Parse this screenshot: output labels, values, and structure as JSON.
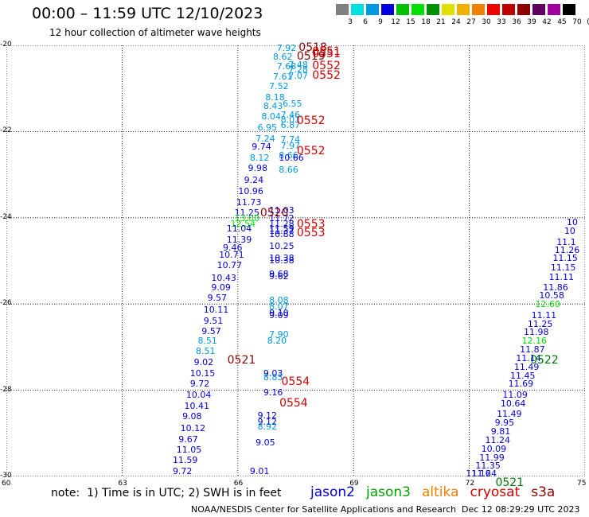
{
  "title": "00:00 – 11:59 UTC 12/10/2023",
  "subtitle": "12 hour collection of altimeter wave heights",
  "colorbar": {
    "unit": "(ft)",
    "labels": [
      "3",
      "6",
      "9",
      "12",
      "15",
      "18",
      "21",
      "24",
      "27",
      "30",
      "33",
      "36",
      "39",
      "42",
      "45",
      "70"
    ],
    "colors": [
      "#808080",
      "#00e0e0",
      "#0098e0",
      "#0000e0",
      "#00c000",
      "#00e000",
      "#009000",
      "#e0e000",
      "#f0b000",
      "#f08000",
      "#f00000",
      "#c00000",
      "#900000",
      "#600060",
      "#a000a0",
      "#000000"
    ]
  },
  "axes": {
    "lat_labels": [
      "-20",
      "-22",
      "-24",
      "-26",
      "-28",
      "-30"
    ],
    "lon_labels": [
      "60",
      "63",
      "66",
      "69",
      "72",
      "75"
    ]
  },
  "chart_data": {
    "type": "scatter",
    "xlim": [
      60,
      75
    ],
    "ylim": [
      -30,
      -20
    ],
    "points": [
      {
        "t": "7.92",
        "lon": 67.3,
        "lat": -20.05,
        "c": "#0098e0"
      },
      {
        "t": "8.62",
        "lon": 67.2,
        "lat": -20.25,
        "c": "#0098e0"
      },
      {
        "t": "7.68",
        "lon": 67.3,
        "lat": -20.48,
        "c": "#0098e0"
      },
      {
        "t": "7.48",
        "lon": 67.6,
        "lat": -20.45,
        "c": "#0098e0"
      },
      {
        "t": "7.28",
        "lon": 67.6,
        "lat": -20.55,
        "c": "#0098e0"
      },
      {
        "t": "7.61",
        "lon": 67.2,
        "lat": -20.72,
        "c": "#0098e0"
      },
      {
        "t": "7.07",
        "lon": 67.6,
        "lat": -20.7,
        "c": "#0098e0"
      },
      {
        "t": "7.52",
        "lon": 67.1,
        "lat": -20.95,
        "c": "#0098e0"
      },
      {
        "t": "8.18",
        "lon": 67.0,
        "lat": -21.2,
        "c": "#0098e0"
      },
      {
        "t": "8.43",
        "lon": 66.95,
        "lat": -21.4,
        "c": "#0098e0"
      },
      {
        "t": "6.55",
        "lon": 67.45,
        "lat": -21.35,
        "c": "#0098e0"
      },
      {
        "t": "8.04",
        "lon": 66.9,
        "lat": -21.65,
        "c": "#0098e0"
      },
      {
        "t": "7.46",
        "lon": 67.4,
        "lat": -21.6,
        "c": "#0098e0"
      },
      {
        "t": "8.01",
        "lon": 67.4,
        "lat": -21.72,
        "c": "#0098e0"
      },
      {
        "t": "6.95",
        "lon": 66.8,
        "lat": -21.9,
        "c": "#0098e0"
      },
      {
        "t": "6.87",
        "lon": 67.4,
        "lat": -21.85,
        "c": "#0098e0"
      },
      {
        "t": "7.24",
        "lon": 66.75,
        "lat": -22.15,
        "c": "#0098e0"
      },
      {
        "t": "7.74",
        "lon": 67.4,
        "lat": -22.17,
        "c": "#0098e0"
      },
      {
        "t": "9.74",
        "lon": 66.65,
        "lat": -22.35,
        "c": "#0000e0"
      },
      {
        "t": "7.97",
        "lon": 67.4,
        "lat": -22.33,
        "c": "#0098e0"
      },
      {
        "t": "8.12",
        "lon": 66.6,
        "lat": -22.6,
        "c": "#0098e0"
      },
      {
        "t": "8.66",
        "lon": 67.35,
        "lat": -22.55,
        "c": "#0098e0"
      },
      {
        "t": "10.66",
        "lon": 67.35,
        "lat": -22.6,
        "c": "#0000e0"
      },
      {
        "t": "9.98",
        "lon": 66.55,
        "lat": -22.85,
        "c": "#0000e0"
      },
      {
        "t": "8.66",
        "lon": 67.35,
        "lat": -22.88,
        "c": "#0098e0"
      },
      {
        "t": "9.24",
        "lon": 66.45,
        "lat": -23.12,
        "c": "#0000e0"
      },
      {
        "t": "10.96",
        "lon": 66.3,
        "lat": -23.38,
        "c": "#0000e0"
      },
      {
        "t": "11.73",
        "lon": 66.25,
        "lat": -23.63,
        "c": "#0000e0"
      },
      {
        "t": "11.25",
        "lon": 66.2,
        "lat": -23.88,
        "c": "#0000e0"
      },
      {
        "t": "11.03",
        "lon": 67.1,
        "lat": -23.82,
        "c": "#0000e0"
      },
      {
        "t": "11.72",
        "lon": 67.1,
        "lat": -24.0,
        "c": "#0000e0"
      },
      {
        "t": "13.00",
        "lon": 66.2,
        "lat": -24.0,
        "c": "#00e000"
      },
      {
        "t": "11.28",
        "lon": 67.1,
        "lat": -24.13,
        "c": "#0000e0"
      },
      {
        "t": "12.54",
        "lon": 66.1,
        "lat": -24.13,
        "c": "#00e000"
      },
      {
        "t": "11.59",
        "lon": 67.1,
        "lat": -24.25,
        "c": "#0000e0"
      },
      {
        "t": "11.37",
        "lon": 67.1,
        "lat": -24.3,
        "c": "#0000e0"
      },
      {
        "t": "11.04",
        "lon": 66.0,
        "lat": -24.25,
        "c": "#0000e0"
      },
      {
        "t": "10.88",
        "lon": 67.1,
        "lat": -24.38,
        "c": "#0000e0"
      },
      {
        "t": "11.39",
        "lon": 66.0,
        "lat": -24.5,
        "c": "#0000e0"
      },
      {
        "t": "10.25",
        "lon": 67.1,
        "lat": -24.65,
        "c": "#0000e0"
      },
      {
        "t": "9.46",
        "lon": 65.9,
        "lat": -24.68,
        "c": "#0000e0"
      },
      {
        "t": "10.71",
        "lon": 65.8,
        "lat": -24.85,
        "c": "#0000e0"
      },
      {
        "t": "10.38",
        "lon": 67.1,
        "lat": -24.92,
        "c": "#0000e0"
      },
      {
        "t": "10.38",
        "lon": 67.1,
        "lat": -24.98,
        "c": "#0000e0"
      },
      {
        "t": "10.77",
        "lon": 65.75,
        "lat": -25.1,
        "c": "#0000e0"
      },
      {
        "t": "9.68",
        "lon": 67.1,
        "lat": -25.3,
        "c": "#0000e0"
      },
      {
        "t": "9.62",
        "lon": 67.1,
        "lat": -25.35,
        "c": "#0000e0"
      },
      {
        "t": "10.43",
        "lon": 65.6,
        "lat": -25.38,
        "c": "#0000e0"
      },
      {
        "t": "9.09",
        "lon": 65.6,
        "lat": -25.6,
        "c": "#0000e0"
      },
      {
        "t": "9.57",
        "lon": 65.5,
        "lat": -25.85,
        "c": "#0000e0"
      },
      {
        "t": "8.08",
        "lon": 67.1,
        "lat": -25.9,
        "c": "#0098e0"
      },
      {
        "t": "8.07",
        "lon": 67.1,
        "lat": -26.05,
        "c": "#0098e0"
      },
      {
        "t": "10.11",
        "lon": 65.4,
        "lat": -26.13,
        "c": "#0000e0"
      },
      {
        "t": "9.10",
        "lon": 67.1,
        "lat": -26.2,
        "c": "#0000e0"
      },
      {
        "t": "9.09",
        "lon": 67.1,
        "lat": -26.25,
        "c": "#0000e0"
      },
      {
        "t": "9.51",
        "lon": 65.4,
        "lat": -26.38,
        "c": "#0000e0"
      },
      {
        "t": "9.57",
        "lon": 65.35,
        "lat": -26.63,
        "c": "#0000e0"
      },
      {
        "t": "7.90",
        "lon": 67.1,
        "lat": -26.7,
        "c": "#0098e0"
      },
      {
        "t": "8.51",
        "lon": 65.25,
        "lat": -26.85,
        "c": "#0098e0"
      },
      {
        "t": "8.20",
        "lon": 67.05,
        "lat": -26.85,
        "c": "#0098e0"
      },
      {
        "t": "8.51",
        "lon": 65.2,
        "lat": -27.08,
        "c": "#0098e0"
      },
      {
        "t": "9.02",
        "lon": 65.15,
        "lat": -27.35,
        "c": "#0000e0"
      },
      {
        "t": "10.15",
        "lon": 65.05,
        "lat": -27.6,
        "c": "#0000e0"
      },
      {
        "t": "9.03",
        "lon": 66.95,
        "lat": -27.6,
        "c": "#0000e0"
      },
      {
        "t": "8.83",
        "lon": 66.95,
        "lat": -27.7,
        "c": "#0098e0"
      },
      {
        "t": "9.72",
        "lon": 65.05,
        "lat": -27.85,
        "c": "#0000e0"
      },
      {
        "t": "10.04",
        "lon": 64.95,
        "lat": -28.1,
        "c": "#0000e0"
      },
      {
        "t": "9.16",
        "lon": 66.95,
        "lat": -28.05,
        "c": "#0000e0"
      },
      {
        "t": "10.41",
        "lon": 64.9,
        "lat": -28.35,
        "c": "#0000e0"
      },
      {
        "t": "9.08",
        "lon": 64.85,
        "lat": -28.6,
        "c": "#0000e0"
      },
      {
        "t": "9.12",
        "lon": 66.8,
        "lat": -28.58,
        "c": "#0000e0"
      },
      {
        "t": "9.12",
        "lon": 66.8,
        "lat": -28.73,
        "c": "#0000e0"
      },
      {
        "t": "8.92",
        "lon": 66.8,
        "lat": -28.83,
        "c": "#0098e0"
      },
      {
        "t": "10.12",
        "lon": 64.8,
        "lat": -28.88,
        "c": "#0000e0"
      },
      {
        "t": "9.67",
        "lon": 64.75,
        "lat": -29.13,
        "c": "#0000e0"
      },
      {
        "t": "9.05",
        "lon": 66.75,
        "lat": -29.2,
        "c": "#0000e0"
      },
      {
        "t": "11.05",
        "lon": 64.7,
        "lat": -29.38,
        "c": "#0000e0"
      },
      {
        "t": "11.59",
        "lon": 64.6,
        "lat": -29.62,
        "c": "#0000e0"
      },
      {
        "t": "9.72",
        "lon": 64.6,
        "lat": -29.87,
        "c": "#0000e0"
      },
      {
        "t": "9.01",
        "lon": 66.6,
        "lat": -29.87,
        "c": "#0000e0"
      },
      {
        "t": "10",
        "lon": 74.85,
        "lat": -24.1,
        "c": "#0000e0"
      },
      {
        "t": "10",
        "lon": 74.75,
        "lat": -24.3,
        "c": "#0000e0"
      },
      {
        "t": "11.1",
        "lon": 74.55,
        "lat": -24.55,
        "c": "#0000e0"
      },
      {
        "t": "11.26",
        "lon": 74.5,
        "lat": -24.75,
        "c": "#0000e0"
      },
      {
        "t": "11.15",
        "lon": 74.45,
        "lat": -24.93,
        "c": "#0000e0"
      },
      {
        "t": "11.15",
        "lon": 74.4,
        "lat": -25.15,
        "c": "#0000e0"
      },
      {
        "t": "11.11",
        "lon": 74.35,
        "lat": -25.37,
        "c": "#0000e0"
      },
      {
        "t": "11.86",
        "lon": 74.2,
        "lat": -25.6,
        "c": "#0000e0"
      },
      {
        "t": "10.58",
        "lon": 74.1,
        "lat": -25.8,
        "c": "#0000e0"
      },
      {
        "t": "12.60",
        "lon": 74.0,
        "lat": -26.0,
        "c": "#00e000"
      },
      {
        "t": "11.11",
        "lon": 73.9,
        "lat": -26.25,
        "c": "#0000e0"
      },
      {
        "t": "11.25",
        "lon": 73.8,
        "lat": -26.45,
        "c": "#0000e0"
      },
      {
        "t": "11.98",
        "lon": 73.7,
        "lat": -26.65,
        "c": "#0000e0"
      },
      {
        "t": "12.16",
        "lon": 73.65,
        "lat": -26.85,
        "c": "#00e000"
      },
      {
        "t": "11.87",
        "lon": 73.6,
        "lat": -27.05,
        "c": "#0000e0"
      },
      {
        "t": "11.14",
        "lon": 73.5,
        "lat": -27.25,
        "c": "#0000e0"
      },
      {
        "t": "11.49",
        "lon": 73.45,
        "lat": -27.45,
        "c": "#0000e0"
      },
      {
        "t": "11.45",
        "lon": 73.35,
        "lat": -27.65,
        "c": "#0000e0"
      },
      {
        "t": "11.69",
        "lon": 73.3,
        "lat": -27.85,
        "c": "#0000e0"
      },
      {
        "t": "11.09",
        "lon": 73.15,
        "lat": -28.1,
        "c": "#0000e0"
      },
      {
        "t": "10.64",
        "lon": 73.1,
        "lat": -28.3,
        "c": "#0000e0"
      },
      {
        "t": "11.49",
        "lon": 73.0,
        "lat": -28.55,
        "c": "#0000e0"
      },
      {
        "t": "9.95",
        "lon": 72.95,
        "lat": -28.75,
        "c": "#0000e0"
      },
      {
        "t": "9.81",
        "lon": 72.85,
        "lat": -28.95,
        "c": "#0000e0"
      },
      {
        "t": "11.24",
        "lon": 72.7,
        "lat": -29.15,
        "c": "#0000e0"
      },
      {
        "t": "10.09",
        "lon": 72.6,
        "lat": -29.35,
        "c": "#0000e0"
      },
      {
        "t": "11.99",
        "lon": 72.55,
        "lat": -29.55,
        "c": "#0000e0"
      },
      {
        "t": "11.35",
        "lon": 72.45,
        "lat": -29.75,
        "c": "#0000e0"
      },
      {
        "t": "11.24",
        "lon": 72.35,
        "lat": -29.95,
        "c": "#0000e0"
      },
      {
        "t": "11.16",
        "lon": 72.2,
        "lat": -30.15,
        "c": "#0000e0"
      }
    ],
    "tracks": [
      {
        "t": "0518",
        "lon": 67.95,
        "lat": -20.05,
        "cls": "dark"
      },
      {
        "t": "0551",
        "lon": 68.3,
        "lat": -20.15,
        "cls": ""
      },
      {
        "t": "0551",
        "lon": 68.3,
        "lat": -20.2,
        "cls": ""
      },
      {
        "t": "0519",
        "lon": 67.9,
        "lat": -20.25,
        "cls": "dark"
      },
      {
        "t": "0552",
        "lon": 68.3,
        "lat": -20.48,
        "cls": ""
      },
      {
        "t": "0552",
        "lon": 68.3,
        "lat": -20.7,
        "cls": ""
      },
      {
        "t": "0552",
        "lon": 67.9,
        "lat": -21.75,
        "cls": ""
      },
      {
        "t": "0552",
        "lon": 67.9,
        "lat": -22.45,
        "cls": ""
      },
      {
        "t": "0520",
        "lon": 66.95,
        "lat": -23.9,
        "cls": "dark"
      },
      {
        "t": "0553",
        "lon": 67.9,
        "lat": -24.15,
        "cls": ""
      },
      {
        "t": "0553",
        "lon": 67.9,
        "lat": -24.35,
        "cls": ""
      },
      {
        "t": "0521",
        "lon": 66.1,
        "lat": -27.3,
        "cls": "dark"
      },
      {
        "t": "0554",
        "lon": 67.5,
        "lat": -27.8,
        "cls": ""
      },
      {
        "t": "0554",
        "lon": 67.45,
        "lat": -28.3,
        "cls": ""
      },
      {
        "t": "0522",
        "lon": 73.95,
        "lat": -27.3,
        "cls": "green"
      },
      {
        "t": "0521",
        "lon": 73.05,
        "lat": -30.15,
        "cls": "green"
      }
    ]
  },
  "note": "note:  1) Time is in UTC; 2) SWH is in feet",
  "legend": [
    {
      "label": "jason2",
      "color": "#0000d0"
    },
    {
      "label": "jason3",
      "color": "#00a000"
    },
    {
      "label": "altika",
      "color": "#f08000"
    },
    {
      "label": "cryosat",
      "color": "#d00000"
    },
    {
      "label": "s3a",
      "color": "#8b0000"
    }
  ],
  "footer": "NOAA/NESDIS Center for Satellite Applications and Research",
  "stamp": "Dec 12 08:29:29 UTC 2023"
}
